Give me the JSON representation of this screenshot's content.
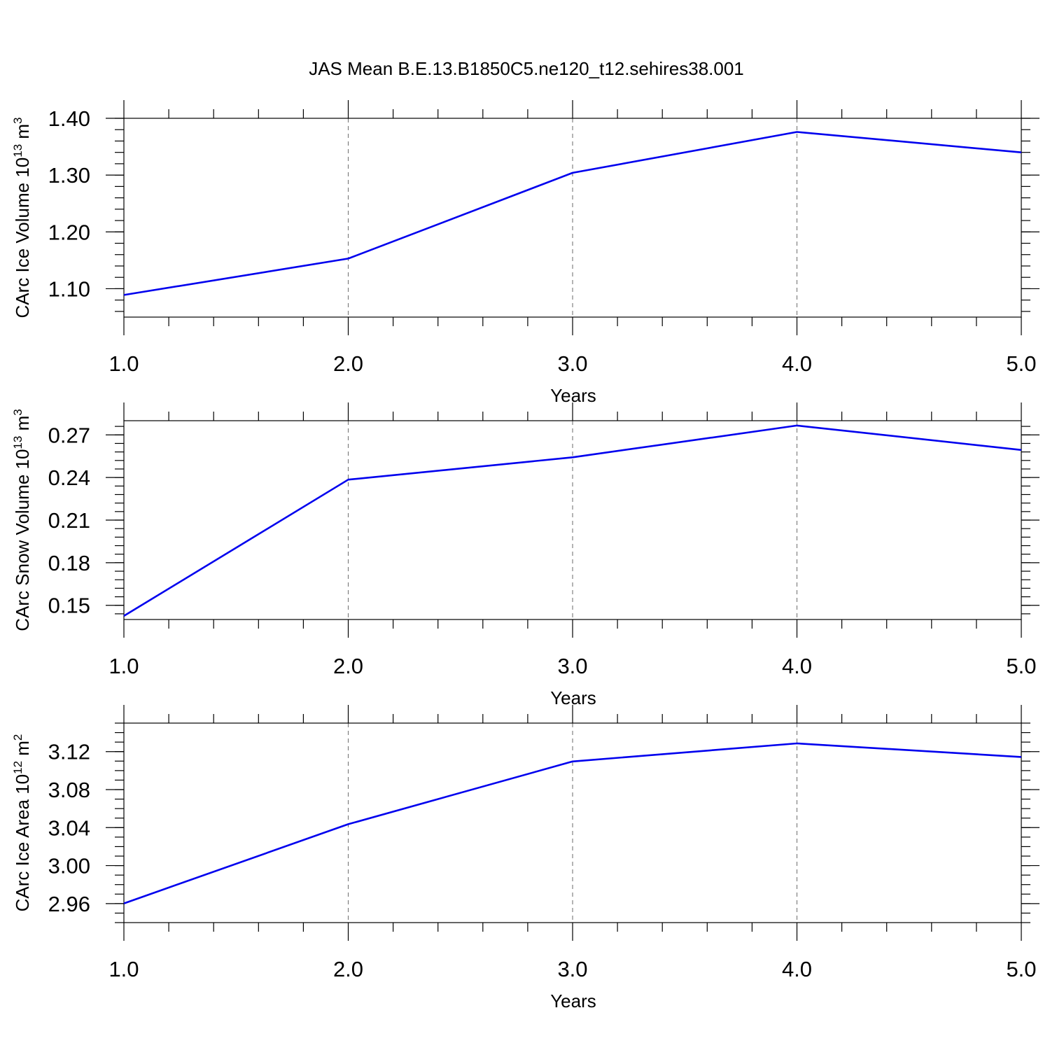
{
  "figure_title": "JAS Mean B.E.13.B1850C5.ne120_t12.sehires38.001",
  "chart_data": [
    {
      "type": "line",
      "title": "",
      "xlabel": "Years",
      "ylabel": {
        "text": "CArc Ice Volume 10",
        "sup": "13",
        "unit": " m",
        "unit_sup": "3"
      },
      "x": [
        1,
        2,
        3,
        4,
        5
      ],
      "xlim": [
        1,
        5
      ],
      "xticks": [
        "1.0",
        "2.0",
        "3.0",
        "4.0",
        "5.0"
      ],
      "ylim": [
        1.05,
        1.4
      ],
      "yticks": [
        1.1,
        1.2,
        1.3,
        1.4
      ],
      "ytick_labels": [
        "1.10",
        "1.20",
        "1.30",
        "1.40"
      ],
      "y_minor_step": 0.02,
      "grid": "vertical dashed at major x ticks",
      "series": [
        {
          "values": [
            1.089,
            1.153,
            1.304,
            1.376,
            1.34
          ],
          "color": "#0000ee"
        }
      ]
    },
    {
      "type": "line",
      "title": "",
      "xlabel": "Years",
      "ylabel": {
        "text": "CArc Snow Volume 10",
        "sup": "13",
        "unit": " m",
        "unit_sup": "3"
      },
      "x": [
        1,
        2,
        3,
        4,
        5
      ],
      "xlim": [
        1,
        5
      ],
      "xticks": [
        "1.0",
        "2.0",
        "3.0",
        "4.0",
        "5.0"
      ],
      "ylim": [
        0.14,
        0.28
      ],
      "yticks": [
        0.15,
        0.18,
        0.21,
        0.24,
        0.27
      ],
      "ytick_labels": [
        "0.15",
        "0.18",
        "0.21",
        "0.24",
        "0.27"
      ],
      "y_minor_step": 0.006,
      "grid": "vertical dashed at major x ticks",
      "series": [
        {
          "values": [
            0.1425,
            0.2385,
            0.2542,
            0.2766,
            0.2594
          ],
          "color": "#0000ee"
        }
      ]
    },
    {
      "type": "line",
      "title": "",
      "xlabel": "Years",
      "ylabel": {
        "text": "CArc Ice Area 10",
        "sup": "12",
        "unit": " m",
        "unit_sup": "2"
      },
      "x": [
        1,
        2,
        3,
        4,
        5
      ],
      "xlim": [
        1,
        5
      ],
      "xticks": [
        "1.0",
        "2.0",
        "3.0",
        "4.0",
        "5.0"
      ],
      "ylim": [
        2.94,
        3.15
      ],
      "yticks": [
        2.96,
        3.0,
        3.04,
        3.08,
        3.12
      ],
      "ytick_labels": [
        "2.96",
        "3.00",
        "3.04",
        "3.08",
        "3.12"
      ],
      "y_minor_step": 0.01,
      "grid": "vertical dashed at major x ticks",
      "series": [
        {
          "values": [
            2.9602,
            3.0436,
            3.1096,
            3.1286,
            3.1143
          ],
          "color": "#0000ee"
        }
      ]
    }
  ]
}
